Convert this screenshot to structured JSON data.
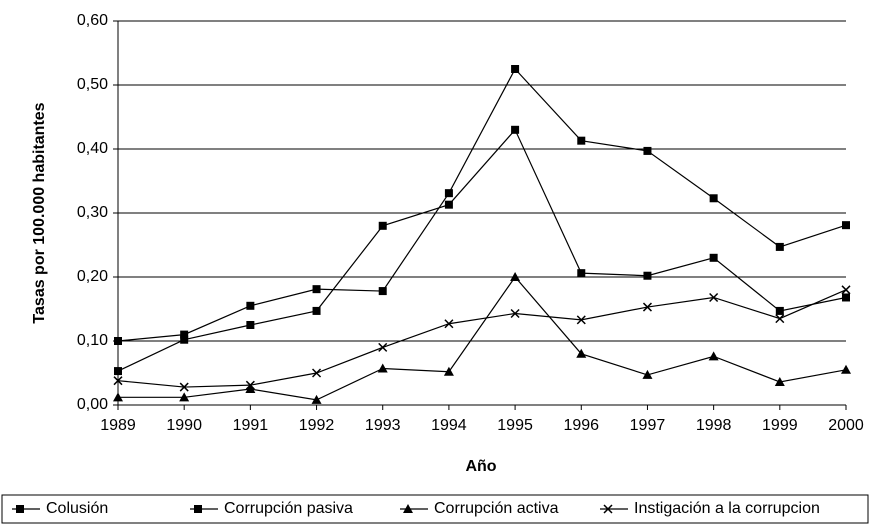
{
  "chart_data": {
    "type": "line",
    "ylabel": "Tasas por 100.000 habitantes",
    "xlabel": "Año",
    "categories": [
      "1989",
      "1990",
      "1991",
      "1992",
      "1993",
      "1994",
      "1995",
      "1996",
      "1997",
      "1998",
      "1999",
      "2000"
    ],
    "ylim": [
      0,
      0.6
    ],
    "yticks": [
      {
        "value": 0,
        "label": "0,00"
      },
      {
        "value": 0.1,
        "label": "0,10"
      },
      {
        "value": 0.2,
        "label": "0,20"
      },
      {
        "value": 0.3,
        "label": "0,30"
      },
      {
        "value": 0.4,
        "label": "0,40"
      },
      {
        "value": 0.5,
        "label": "0,50"
      },
      {
        "value": 0.6,
        "label": "0,60"
      }
    ],
    "grid": true,
    "legend": "bottom",
    "series": [
      {
        "name": "Colusión",
        "color": "#000000",
        "marker": "square",
        "values": [
          0.1,
          0.11,
          0.155,
          0.181,
          0.178,
          0.331,
          0.525,
          0.413,
          0.397,
          0.323,
          0.247,
          0.281
        ]
      },
      {
        "name": "Corrupción pasiva",
        "color": "#000000",
        "marker": "square",
        "values": [
          0.053,
          0.102,
          0.125,
          0.147,
          0.28,
          0.313,
          0.43,
          0.206,
          0.202,
          0.23,
          0.147,
          0.168
        ]
      },
      {
        "name": "Corrupción activa",
        "color": "#000000",
        "marker": "triangle",
        "values": [
          0.012,
          0.012,
          0.025,
          0.008,
          0.057,
          0.052,
          0.2,
          0.08,
          0.047,
          0.076,
          0.036,
          0.055
        ]
      },
      {
        "name": "Instigación a la corrupcion",
        "color": "#000000",
        "marker": "x",
        "values": [
          0.038,
          0.028,
          0.031,
          0.05,
          0.09,
          0.127,
          0.143,
          0.133,
          0.153,
          0.168,
          0.135,
          0.18
        ]
      }
    ]
  }
}
